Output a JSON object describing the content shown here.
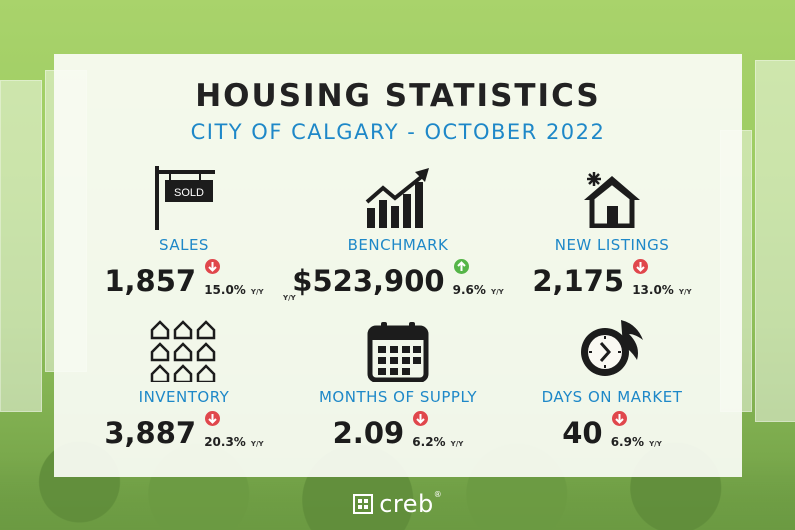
{
  "header": {
    "title": "HOUSING STATISTICS",
    "subtitle": "CITY OF CALGARY - OCTOBER 2022"
  },
  "stats": [
    {
      "label": "SALES",
      "value": "1,857",
      "change": "15.0%",
      "direction": "down",
      "unit": "Y/Y",
      "icon": "sold-sign-icon"
    },
    {
      "label": "BENCHMARK",
      "value": "$523,900",
      "change": "9.6%",
      "direction": "up",
      "unit": "Y/Y",
      "icon": "rising-chart-icon"
    },
    {
      "label": "NEW LISTINGS",
      "value": "2,175",
      "change": "13.0%",
      "direction": "down",
      "unit": "Y/Y",
      "icon": "new-house-icon"
    },
    {
      "label": "INVENTORY",
      "value": "3,887",
      "change": "20.3%",
      "direction": "down",
      "unit": "Y/Y",
      "icon": "houses-grid-icon"
    },
    {
      "label": "MONTHS OF SUPPLY",
      "value": "2.09",
      "change": "6.2%",
      "direction": "down",
      "unit": "Y/Y",
      "icon": "calendar-icon"
    },
    {
      "label": "DAYS ON MARKET",
      "value": "40",
      "change": "6.9%",
      "direction": "down",
      "unit": "Y/Y",
      "icon": "fast-clock-icon"
    }
  ],
  "sales_extra_unit": "Y/Y",
  "footer": {
    "logo_text": "creb",
    "registered": "®"
  },
  "colors": {
    "accent": "#1e88c8",
    "down": "#e0474c",
    "up": "#55b548"
  }
}
